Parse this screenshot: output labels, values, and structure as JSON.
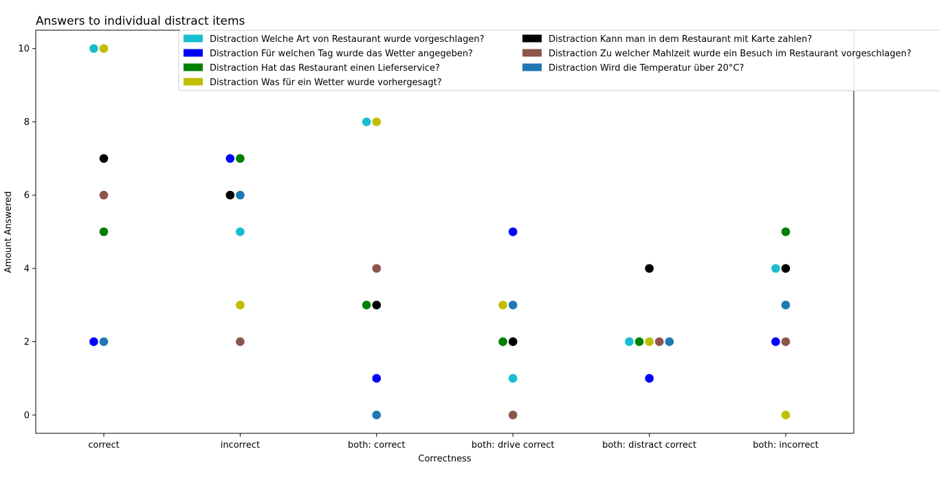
{
  "chart_data": {
    "type": "scatter",
    "title": "Answers to individual distract items",
    "xlabel": "Correctness",
    "ylabel": "Amount Answered",
    "categories": [
      "correct",
      "incorrect",
      "both: correct",
      "both: drive correct",
      "both: distract correct",
      "both: incorrect"
    ],
    "yticks": [
      0,
      2,
      4,
      6,
      8,
      10
    ],
    "ylim": [
      -0.5,
      10.5
    ],
    "grid": false,
    "legend_position": "top",
    "series": [
      {
        "name": "Distraction Welche Art von Restaurant wurde vorgeschlagen?",
        "color": "#17becf",
        "values": [
          10,
          5,
          8,
          1,
          2,
          4
        ]
      },
      {
        "name": "Distraction Für welchen Tag wurde das Wetter angegeben?",
        "color": "#0000ff",
        "values": [
          2,
          7,
          1,
          5,
          1,
          2
        ]
      },
      {
        "name": "Distraction Hat das Restaurant einen Lieferservice?",
        "color": "#008000",
        "values": [
          5,
          7,
          3,
          2,
          2,
          5
        ]
      },
      {
        "name": "Distraction Was für ein Wetter wurde vorhergesagt?",
        "color": "#bfbf00",
        "values": [
          10,
          3,
          8,
          3,
          2,
          0
        ]
      },
      {
        "name": "Distraction Kann man in dem Restaurant mit Karte zahlen?",
        "color": "#000000",
        "values": [
          7,
          6,
          3,
          2,
          4,
          4
        ]
      },
      {
        "name": "Distraction Zu welcher Mahlzeit wurde ein Besuch im Restaurant vorgeschlagen?",
        "color": "#8c564b",
        "values": [
          6,
          2,
          4,
          0,
          2,
          2
        ]
      },
      {
        "name": "Distraction Wird die Temperatur über 20°C?",
        "color": "#1f77b4",
        "values": [
          2,
          6,
          0,
          3,
          2,
          3
        ]
      }
    ]
  }
}
